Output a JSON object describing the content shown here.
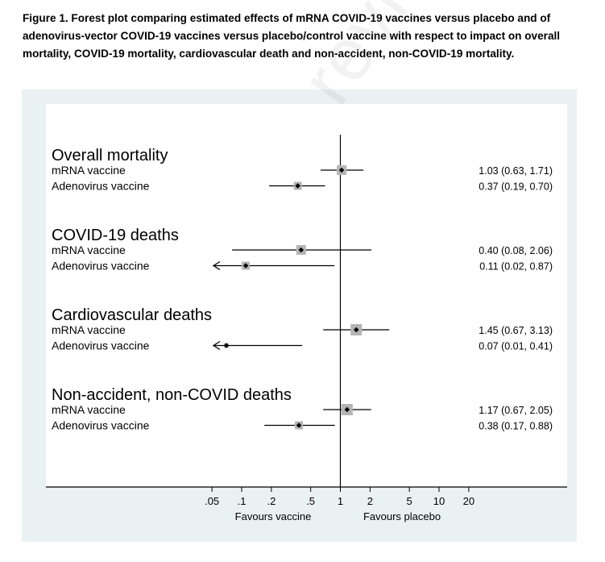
{
  "figure": {
    "caption": "Figure 1. Forest plot comparing estimated effects of mRNA COVID-19 vaccines versus placebo and of adenovirus-vector COVID-19 vaccines versus placebo/control vaccine with respect to impact on overall mortality, COVID-19 mortality, cardiovascular death and non-accident, non-COVID-19 mortality.",
    "watermark": "not peer reviewed"
  },
  "chart_data": {
    "type": "forest",
    "scale": "log",
    "reference_value": 1,
    "x_ticks": [
      0.05,
      0.1,
      0.2,
      0.5,
      1,
      2,
      5,
      10,
      20
    ],
    "x_tick_labels": [
      ".05",
      ".1",
      ".2",
      ".5",
      "1",
      "2",
      "5",
      "10",
      "20"
    ],
    "x_label_left": "Favours vaccine",
    "x_label_right": "Favours placebo",
    "groups": [
      {
        "title": "Overall mortality",
        "rows": [
          {
            "label": "mRNA vaccine",
            "estimate": 1.03,
            "lower": 0.63,
            "upper": 1.71,
            "text": "1.03 (0.63, 1.71)"
          },
          {
            "label": "Adenovirus vaccine",
            "estimate": 0.37,
            "lower": 0.19,
            "upper": 0.7,
            "text": "0.37 (0.19, 0.70)"
          }
        ]
      },
      {
        "title": "COVID-19 deaths",
        "rows": [
          {
            "label": "mRNA vaccine",
            "estimate": 0.4,
            "lower": 0.08,
            "upper": 2.06,
            "text": "0.40 (0.08, 2.06)"
          },
          {
            "label": "Adenovirus vaccine",
            "estimate": 0.11,
            "lower": 0.02,
            "upper": 0.87,
            "text": "0.11 (0.02, 0.87)"
          }
        ]
      },
      {
        "title": "Cardiovascular deaths",
        "rows": [
          {
            "label": "mRNA vaccine",
            "estimate": 1.45,
            "lower": 0.67,
            "upper": 3.13,
            "text": "1.45 (0.67, 3.13)"
          },
          {
            "label": "Adenovirus vaccine",
            "estimate": 0.07,
            "lower": 0.01,
            "upper": 0.41,
            "text": "0.07 (0.01, 0.41)"
          }
        ]
      },
      {
        "title": "Non-accident, non-COVID deaths",
        "rows": [
          {
            "label": "mRNA vaccine",
            "estimate": 1.17,
            "lower": 0.67,
            "upper": 2.05,
            "text": "1.17 (0.67, 2.05)"
          },
          {
            "label": "Adenovirus vaccine",
            "estimate": 0.38,
            "lower": 0.17,
            "upper": 0.88,
            "text": "0.38 (0.17, 0.88)"
          }
        ]
      }
    ],
    "colors": {
      "panel_background": "#eaf1f3",
      "plot_background": "#ffffff",
      "weight_box": "#b5b5b5",
      "line": "#000000"
    }
  }
}
